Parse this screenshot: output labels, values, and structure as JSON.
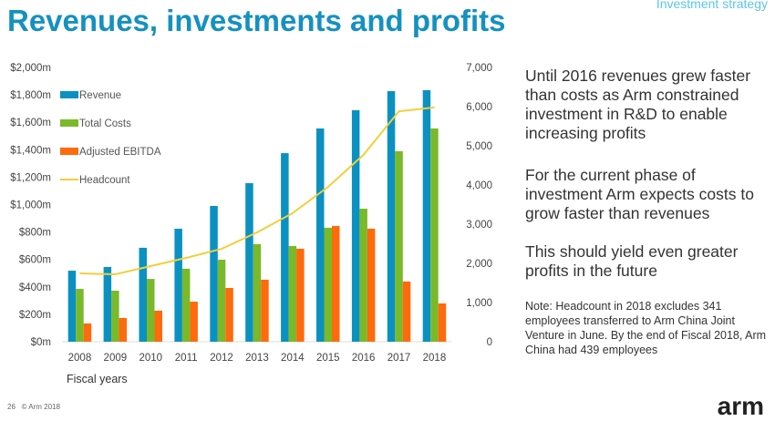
{
  "header": {
    "title": "Revenues, investments and profits",
    "section": "Investment strategy"
  },
  "chart_data": {
    "type": "bar",
    "categories": [
      "2008",
      "2009",
      "2010",
      "2011",
      "2012",
      "2013",
      "2014",
      "2015",
      "2016",
      "2017",
      "2018"
    ],
    "xlabel": "Fiscal years",
    "y_left": {
      "ticks": [
        "$0m",
        "$200m",
        "$400m",
        "$600m",
        "$800m",
        "$1,000m",
        "$1,200m",
        "$1,400m",
        "$1,600m",
        "$1,800m",
        "$2,000m"
      ],
      "range": [
        0,
        2000
      ]
    },
    "y_right": {
      "ticks": [
        "0",
        "1,000",
        "2,000",
        "3,000",
        "4,000",
        "5,000",
        "6,000",
        "7,000"
      ],
      "range": [
        0,
        7000
      ]
    },
    "series": [
      {
        "name": "Revenue",
        "type": "bar",
        "color": "#0a91c2",
        "values": [
          518,
          545,
          685,
          824,
          990,
          1156,
          1375,
          1555,
          1688,
          1827,
          1834
        ]
      },
      {
        "name": "Total Costs",
        "type": "bar",
        "color": "#7ab929",
        "values": [
          385,
          372,
          458,
          532,
          598,
          711,
          698,
          831,
          970,
          1389,
          1555
        ]
      },
      {
        "name": "Adjusted EBITDA",
        "type": "bar",
        "color": "#ff6a0d",
        "values": [
          133,
          173,
          226,
          292,
          392,
          452,
          678,
          844,
          824,
          439,
          279
        ]
      },
      {
        "name": "Headcount",
        "type": "line",
        "axis": "right",
        "color": "#f2cf3a",
        "values": [
          1744,
          1720,
          1930,
          2140,
          2370,
          2790,
          3280,
          3950,
          4770,
          5880,
          5980
        ]
      }
    ],
    "legend": "top-left"
  },
  "side": {
    "p1": "Until 2016 revenues grew faster than costs as Arm constrained investment in R&D to enable increasing profits",
    "p2": "For the current phase of investment Arm expects costs to grow faster than revenues",
    "p3": "This should yield even greater profits in the future",
    "note": "Note: Headcount in 2018 excludes 341 employees transferred to Arm China Joint Venture in June. By the end of Fiscal 2018, Arm China had 439 employees"
  },
  "footer": {
    "page": "26",
    "copyright": "© Arm 2018",
    "logo": "arm"
  }
}
